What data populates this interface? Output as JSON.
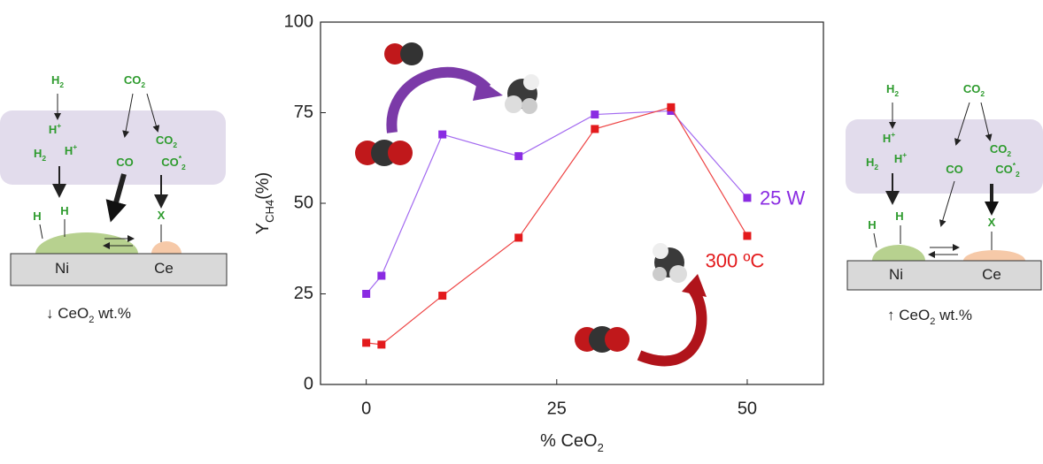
{
  "chart_data": {
    "type": "line",
    "x_label": {
      "text": "% CeO",
      "sub": "2"
    },
    "y_label": {
      "text": "Y",
      "sub": "CH4",
      "suffix": "(%)"
    },
    "x": [
      0,
      2,
      10,
      20,
      30,
      40,
      50
    ],
    "series": [
      {
        "name": "25 W",
        "color": "#8a2be2",
        "line_color": "#a36af0",
        "values": [
          25,
          30,
          69,
          63,
          74.5,
          75.5,
          51.5
        ]
      },
      {
        "name": "300 ºC",
        "color": "#e31a1c",
        "line_color": "#ee4444",
        "values": [
          11.5,
          11,
          24.5,
          40.5,
          70.5,
          76.5,
          41
        ]
      }
    ],
    "xlim": [
      -6,
      60
    ],
    "ylim": [
      0,
      100
    ],
    "xticks": [
      0,
      25,
      50
    ],
    "yticks": [
      0,
      25,
      50,
      75,
      100
    ],
    "grid": false
  },
  "left_diagram": {
    "h2_top": {
      "text": "H",
      "sub": "2"
    },
    "co2_top": {
      "text": "CO",
      "sub": "2"
    },
    "h_plus_1": {
      "text": "H",
      "sup": "+"
    },
    "h2_mid": {
      "text": "H",
      "sub": "2"
    },
    "h_plus_2": {
      "text": "H",
      "sup": "+"
    },
    "co": {
      "text": "CO"
    },
    "co2_mid": {
      "text": "CO",
      "sub": "2"
    },
    "co_star2": {
      "text": "CO",
      "sup": "*",
      "sub": "2"
    },
    "h_1": {
      "text": "H"
    },
    "h_2": {
      "text": "H"
    },
    "x": {
      "text": "X"
    },
    "ni": {
      "text": "Ni"
    },
    "ce": {
      "text": "Ce"
    },
    "caption": {
      "text": "↓ CeO",
      "sub": "2",
      "suffix": " wt.%"
    }
  },
  "right_diagram": {
    "h2_top": {
      "text": "H",
      "sub": "2"
    },
    "co2_top": {
      "text": "CO",
      "sub": "2"
    },
    "h_plus_1": {
      "text": "H",
      "sup": "+"
    },
    "h2_mid": {
      "text": "H",
      "sub": "2"
    },
    "h_plus_2": {
      "text": "H",
      "sup": "+"
    },
    "co": {
      "text": "CO"
    },
    "co2_mid": {
      "text": "CO",
      "sub": "2"
    },
    "co_star2": {
      "text": "CO",
      "sup": "*",
      "sub": "2"
    },
    "h_1": {
      "text": "H"
    },
    "h_2": {
      "text": "H"
    },
    "x": {
      "text": "X"
    },
    "ni": {
      "text": "Ni"
    },
    "ce": {
      "text": "Ce"
    },
    "caption": {
      "text": "↑  CeO",
      "sub": "2",
      "suffix": " wt.%"
    }
  }
}
